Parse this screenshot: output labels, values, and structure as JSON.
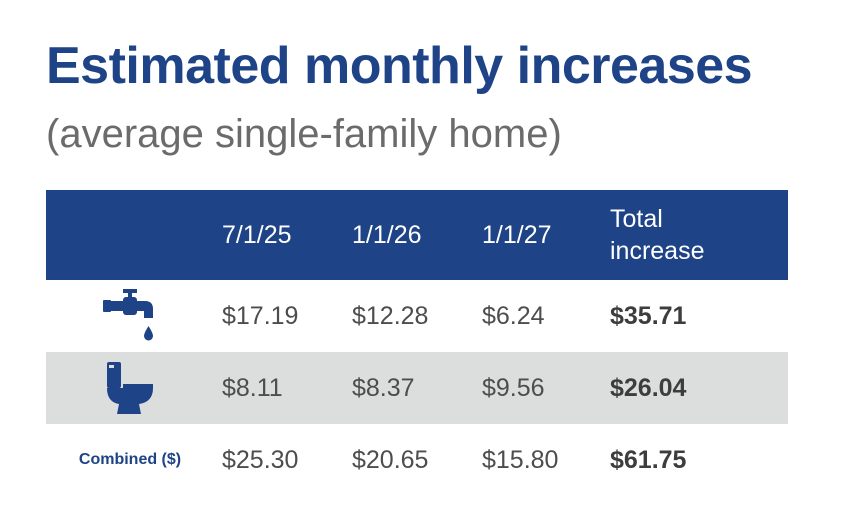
{
  "title": "Estimated monthly increases",
  "subtitle": "(average single-family home)",
  "table": {
    "headers": [
      "",
      "7/1/25",
      "1/1/26",
      "1/1/27",
      "Total\nincrease"
    ],
    "header_total_line1": "Total",
    "header_total_line2": "increase",
    "rows": [
      {
        "icon": "water-faucet-icon",
        "label": "",
        "values": [
          "$17.19",
          "$12.28",
          "$6.24"
        ],
        "total": "$35.71"
      },
      {
        "icon": "toilet-icon",
        "label": "",
        "values": [
          "$8.11",
          "$8.37",
          "$9.56"
        ],
        "total": "$26.04"
      },
      {
        "icon": "",
        "label": "Combined ($)",
        "values": [
          "$25.30",
          "$20.65",
          "$15.80"
        ],
        "total": "$61.75"
      }
    ]
  },
  "colors": {
    "brand_blue": "#1e4387",
    "shaded_row": "#dcdedd",
    "subtitle_gray": "#6b6b6b"
  }
}
